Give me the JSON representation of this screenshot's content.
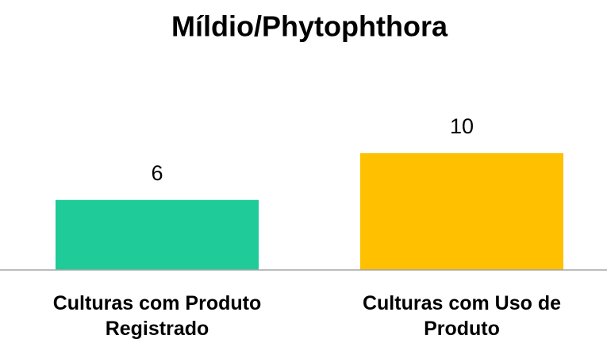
{
  "chart_data": {
    "type": "bar",
    "title": "Míldio/Phytophthora",
    "categories": [
      "Culturas com Produto Registrado",
      "Culturas com Uso de Produto"
    ],
    "values": [
      6,
      10
    ],
    "colors": [
      "#1fcb98",
      "#ffc000"
    ],
    "ylim": [
      0,
      12
    ]
  }
}
